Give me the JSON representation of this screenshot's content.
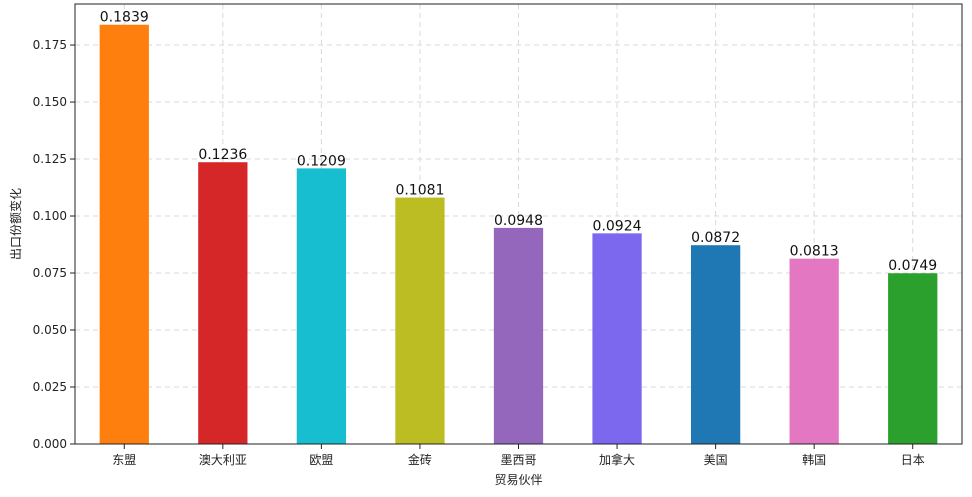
{
  "chart_data": {
    "type": "bar",
    "title": "",
    "xlabel": "贸易伙伴",
    "ylabel": "出口份额变化",
    "categories": [
      "东盟",
      "澳大利亚",
      "欧盟",
      "金砖",
      "墨西哥",
      "加拿大",
      "美国",
      "韩国",
      "日本"
    ],
    "values": [
      0.1839,
      0.1236,
      0.1209,
      0.1081,
      0.0948,
      0.0924,
      0.0872,
      0.0813,
      0.0749
    ],
    "value_labels": [
      "0.1839",
      "0.1236",
      "0.1209",
      "0.1081",
      "0.0948",
      "0.0924",
      "0.0872",
      "0.0813",
      "0.0749"
    ],
    "colors": [
      "#ff7f0e",
      "#d62728",
      "#17becf",
      "#bcbd22",
      "#9467bd",
      "#7b68ee",
      "#1f77b4",
      "#e377c2",
      "#2ca02c"
    ],
    "ylim": [
      0,
      0.193
    ],
    "yticks": [
      0,
      0.025,
      0.05,
      0.075,
      0.1,
      0.125,
      0.15,
      0.175
    ],
    "ytick_labels": [
      "0.000",
      "0.025",
      "0.050",
      "0.075",
      "0.100",
      "0.125",
      "0.150",
      "0.175"
    ],
    "grid": true,
    "legend": "none"
  }
}
